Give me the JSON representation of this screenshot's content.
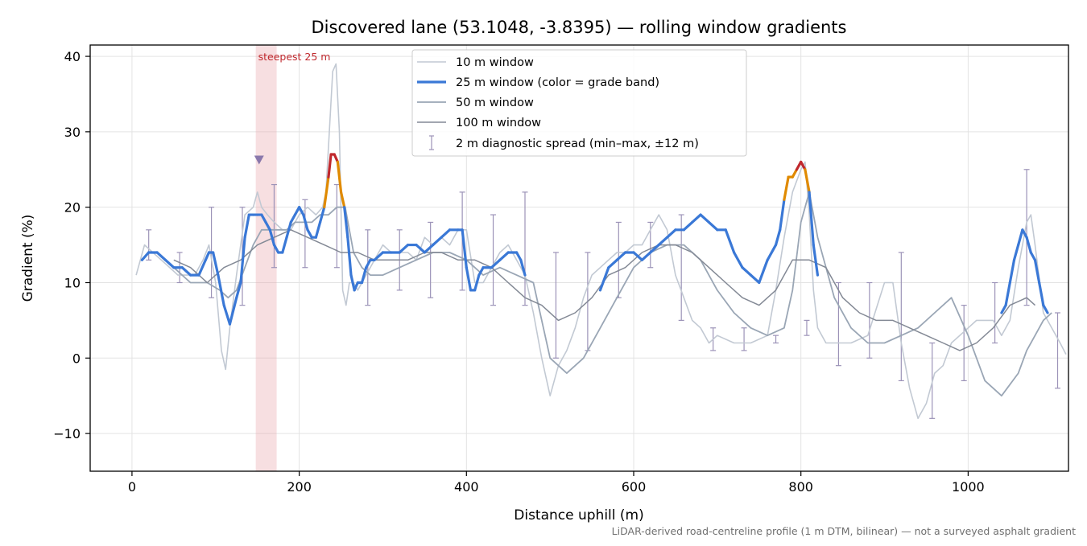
{
  "chart_data": {
    "type": "line",
    "title": "Discovered lane (53.1048, -3.8395) — rolling window gradients",
    "xlabel": "Distance uphill (m)",
    "ylabel": "Gradient (%)",
    "xlim": [
      -50,
      1120
    ],
    "ylim": [
      -15,
      41.5
    ],
    "xticks": [
      0,
      200,
      400,
      600,
      800,
      1000
    ],
    "yticks": [
      -10,
      0,
      10,
      20,
      30,
      40
    ],
    "xtick_labels": [
      "0",
      "200",
      "400",
      "600",
      "800",
      "1000"
    ],
    "ytick_labels": [
      "−10",
      "0",
      "10",
      "20",
      "30",
      "40"
    ],
    "grid": true,
    "legend_position": "top-center",
    "colors": {
      "w10": "#c2c9d3",
      "w25_base": "#3a78d6",
      "w25_high": "#e08a00",
      "w25_max": "#c0282d",
      "w50": "#9aa6b5",
      "w100": "#838995",
      "spread": "#9c93b8",
      "marker": "#8a78ac",
      "highlight": "#e7a3aa",
      "annotation": "#c0282d"
    },
    "series": [
      {
        "name": "10 m window",
        "x": [
          5,
          15,
          25,
          35,
          45,
          55,
          65,
          75,
          85,
          92,
          100,
          107,
          112,
          117,
          125,
          135,
          145,
          150,
          155,
          162,
          170,
          180,
          190,
          200,
          210,
          220,
          228,
          232,
          236,
          240,
          244,
          248,
          252,
          256,
          260,
          265,
          270,
          280,
          290,
          300,
          310,
          320,
          330,
          340,
          350,
          360,
          370,
          380,
          390,
          400,
          410,
          420,
          430,
          440,
          450,
          460,
          470,
          480,
          490,
          500,
          510,
          520,
          530,
          540,
          550,
          560,
          570,
          580,
          590,
          600,
          610,
          620,
          630,
          640,
          650,
          660,
          670,
          680,
          690,
          700,
          720,
          740,
          760,
          770,
          780,
          790,
          800,
          805,
          810,
          815,
          820,
          830,
          840,
          860,
          880,
          900,
          910,
          920,
          930,
          940,
          950,
          960,
          970,
          980,
          990,
          1000,
          1010,
          1020,
          1030,
          1040,
          1050,
          1060,
          1070,
          1075,
          1080,
          1090,
          1100,
          1110,
          1117
        ],
        "y": [
          11,
          15,
          14,
          13,
          12,
          11,
          11,
          11,
          13,
          15,
          10,
          1,
          -1.5,
          4,
          11,
          19,
          20,
          22,
          20,
          19,
          18,
          17,
          17,
          19,
          20,
          19,
          20,
          22,
          30,
          38,
          39,
          30,
          9,
          7,
          10,
          10,
          9,
          11,
          13,
          15,
          14,
          14,
          14,
          13,
          16,
          15,
          16,
          15,
          17,
          17,
          10,
          10,
          12,
          14,
          15,
          13,
          11,
          6,
          0,
          -5,
          -1,
          1,
          4,
          8,
          11,
          12,
          13,
          14,
          14,
          15,
          15,
          17,
          19,
          17,
          11,
          8,
          5,
          4,
          2,
          3,
          2,
          2,
          3,
          9,
          16,
          22,
          25,
          26,
          19,
          9,
          4,
          2,
          2,
          2,
          3,
          10,
          10,
          2,
          -4,
          -8,
          -6,
          -2,
          -1,
          2,
          3,
          4,
          5,
          5,
          5,
          3,
          5,
          12,
          18,
          19,
          15,
          6,
          4,
          2,
          0.5
        ]
      },
      {
        "name": "25 m window (color = grade band)",
        "x": [
          12,
          20,
          30,
          40,
          50,
          60,
          70,
          80,
          88,
          92,
          97,
          103,
          110,
          117,
          125,
          130,
          135,
          140,
          145,
          150,
          155,
          160,
          165,
          170,
          175,
          180,
          185,
          190,
          195,
          200,
          205,
          210,
          215,
          220,
          225,
          230,
          235,
          238,
          242,
          246,
          250,
          254,
          258,
          262,
          266,
          270,
          275,
          280,
          285,
          290,
          300,
          310,
          320,
          330,
          340,
          350,
          360,
          370,
          380,
          390,
          395,
          400,
          405,
          410,
          415,
          420,
          430,
          440,
          450,
          460,
          465,
          470
        ],
        "y": [
          13,
          14,
          14,
          13,
          12,
          12,
          11,
          11,
          13,
          14,
          14,
          11,
          7,
          4.5,
          8,
          10,
          16,
          19,
          19,
          19,
          19,
          18,
          17,
          15,
          14,
          14,
          16,
          18,
          19,
          20,
          19,
          17,
          16,
          16,
          18,
          20,
          24,
          27,
          27,
          26,
          22,
          20,
          16,
          11,
          9,
          10,
          10,
          12,
          13,
          13,
          14,
          14,
          14,
          15,
          15,
          14,
          15,
          16,
          17,
          17,
          17,
          12,
          9,
          9,
          11,
          12,
          12,
          13,
          14,
          14,
          13,
          11
        ],
        "x2": [
          560,
          570,
          580,
          590,
          600,
          610,
          620,
          630,
          640,
          650,
          660,
          670,
          680,
          690,
          700,
          710,
          720,
          730,
          740,
          750,
          760,
          770,
          775,
          780,
          785,
          790,
          795,
          800,
          805,
          810,
          815,
          820
        ],
        "y2": [
          9,
          12,
          13,
          14,
          14,
          13,
          14,
          15,
          16,
          17,
          17,
          18,
          19,
          18,
          17,
          17,
          14,
          12,
          11,
          10,
          13,
          15,
          17,
          21,
          24,
          24,
          25,
          26,
          25,
          22,
          15,
          11
        ],
        "x3": [
          1040,
          1045,
          1050,
          1055,
          1060,
          1065,
          1070,
          1075,
          1080,
          1085,
          1090,
          1095
        ],
        "y3": [
          6,
          7,
          10,
          13,
          15,
          17,
          16,
          14,
          13,
          10,
          7,
          6
        ]
      },
      {
        "name": "50 m window",
        "x": [
          30,
          50,
          70,
          90,
          105,
          115,
          125,
          135,
          145,
          155,
          165,
          175,
          185,
          195,
          205,
          215,
          225,
          235,
          245,
          255,
          265,
          275,
          285,
          300,
          320,
          340,
          360,
          380,
          400,
          420,
          440,
          460,
          480,
          500,
          520,
          540,
          560,
          580,
          600,
          620,
          640,
          660,
          680,
          700,
          720,
          740,
          760,
          780,
          790,
          800,
          810,
          820,
          840,
          860,
          880,
          900,
          920,
          940,
          960,
          980,
          1000,
          1020,
          1040,
          1060,
          1070,
          1080,
          1090,
          1100
        ],
        "y": [
          14,
          12,
          10,
          10,
          9,
          8,
          9,
          12,
          15,
          17,
          17,
          17,
          17,
          18,
          18,
          18,
          19,
          19,
          20,
          20,
          14,
          12,
          11,
          11,
          12,
          13,
          14,
          14,
          13,
          11,
          12,
          11,
          10,
          0,
          -2,
          0,
          4,
          8,
          12,
          14,
          15,
          15,
          13,
          9,
          6,
          4,
          3,
          4,
          9,
          18,
          22,
          16,
          8,
          4,
          2,
          2,
          3,
          4,
          6,
          8,
          3,
          -3,
          -5,
          -2,
          1,
          3,
          5,
          6
        ]
      },
      {
        "name": "100 m window",
        "x": [
          50,
          70,
          90,
          110,
          130,
          150,
          170,
          190,
          210,
          230,
          250,
          270,
          290,
          310,
          330,
          350,
          370,
          390,
          410,
          430,
          450,
          470,
          490,
          510,
          530,
          550,
          570,
          590,
          610,
          630,
          650,
          670,
          690,
          710,
          730,
          750,
          770,
          790,
          810,
          830,
          850,
          870,
          890,
          910,
          930,
          950,
          970,
          990,
          1010,
          1030,
          1050,
          1070,
          1080
        ],
        "y": [
          13,
          12,
          10,
          12,
          13,
          15,
          16,
          17,
          16,
          15,
          14,
          14,
          13,
          13,
          13,
          14,
          14,
          13,
          13,
          12,
          10,
          8,
          7,
          5,
          6,
          8,
          11,
          12,
          14,
          15,
          15,
          14,
          12,
          10,
          8,
          7,
          9,
          13,
          13,
          12,
          8,
          6,
          5,
          5,
          4,
          3,
          2,
          1,
          2,
          4,
          7,
          8,
          7
        ]
      },
      {
        "name": "2 m diagnostic spread (min–max, ±12 m)",
        "x": [
          20,
          57,
          95,
          132,
          170,
          207,
          245,
          282,
          320,
          357,
          395,
          432,
          470,
          507,
          545,
          582,
          620,
          657,
          695,
          732,
          770,
          807,
          845,
          882,
          920,
          957,
          995,
          1032,
          1070,
          1107
        ],
        "low": [
          13,
          10,
          8,
          7,
          12,
          12,
          12,
          7,
          9,
          8,
          9,
          7,
          7,
          0,
          1,
          8,
          12,
          5,
          1,
          1,
          2,
          3,
          -1,
          0,
          -3,
          -8,
          -3,
          2,
          7,
          -4
        ],
        "high": [
          17,
          14,
          20,
          20,
          23,
          21,
          23,
          17,
          17,
          18,
          22,
          19,
          22,
          14,
          14,
          18,
          18,
          19,
          4,
          4,
          3,
          5,
          10,
          10,
          14,
          2,
          7,
          10,
          25,
          6
        ]
      }
    ],
    "annotations": [
      {
        "text": "steepest 25 m",
        "x_range": [
          148,
          173
        ]
      }
    ],
    "markers": [
      {
        "x": 152,
        "y": 26.2,
        "shape": "triangle-down"
      }
    ],
    "footnote": "LiDAR-derived road-centreline profile (1 m DTM, bilinear) — not a surveyed asphalt gradient"
  }
}
